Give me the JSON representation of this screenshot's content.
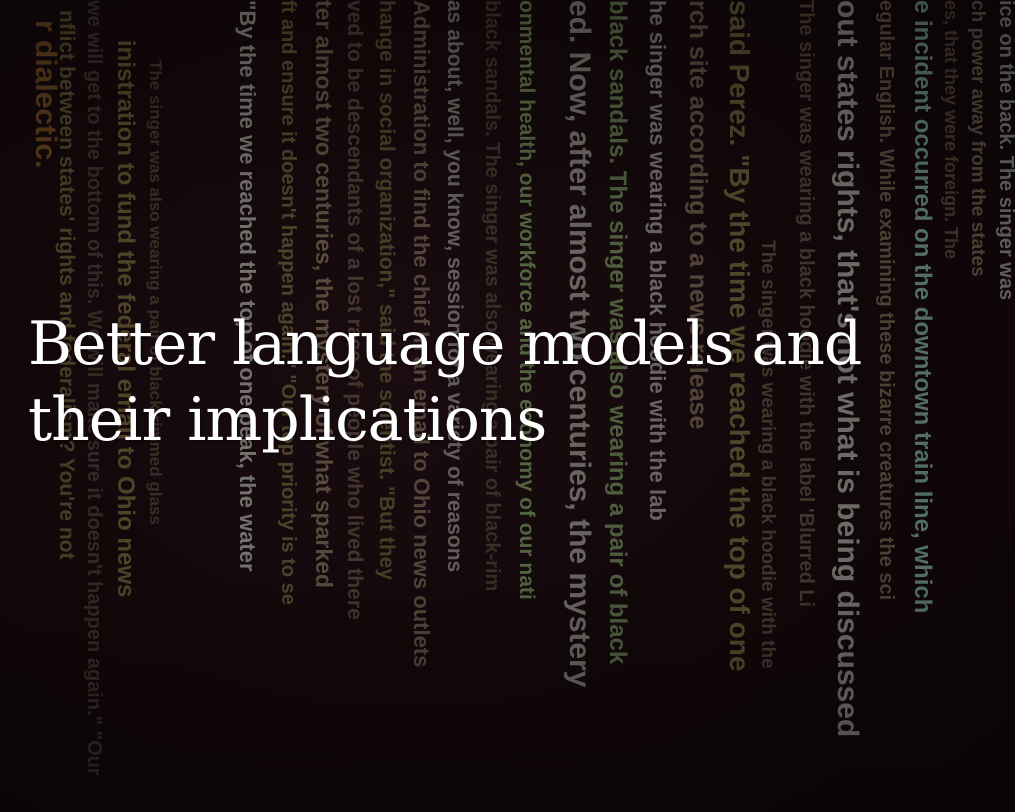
{
  "hero": {
    "title": "Better language models and their implications"
  },
  "background_text_art": {
    "colors": {
      "background": "#0d0608",
      "olive": "#6f6a3c",
      "tan": "#7d6d56",
      "green": "#6d8a57",
      "teal": "#6a8f8a",
      "brown": "#8a5f2a",
      "grey": "#8b8b86"
    },
    "columns": [
      {
        "text": "r dialectic.",
        "color": "#8a5f2a"
      },
      {
        "text": "nflict between states' rights and federalism? You're not",
        "color": "#6f6a3c"
      },
      {
        "text": "we will get to the bottom of this. We will make sure it doesn't happen again.\" \"Our",
        "color": "#5a5440"
      },
      {
        "text": "inistration to fund the federal email to Ohio news",
        "color": "#7a6a3a"
      },
      {
        "text": "The singer was also wearing a pair of black-rimmed glass",
        "color": "#6a5a48"
      },
      {
        "text": "\"By the time we reached the top of one peak, the water",
        "color": "#8b8b86"
      },
      {
        "text": "ft and ensure it doesn't happen again.\" \"Our top priority is to se",
        "color": "#6f6a3c"
      },
      {
        "text": "ter almost two centuries, the mystery of what sparked",
        "color": "#7d6d56"
      },
      {
        "text": "ved to be descendants of a lost race of people who lived there",
        "color": "#6a5a48"
      },
      {
        "text": "hange in social organization,\" said the scientist. \"But they",
        "color": "#6f6a3c"
      },
      {
        "text": "Administration to find the chief In an email to Ohio news outlets",
        "color": "#7d6d56"
      },
      {
        "text": "as about, well, you know, session for a variety of reasons",
        "color": "#8b8b86"
      },
      {
        "text": "black sandals. The singer was also wearing a pair of black-rim",
        "color": "#5a5440"
      },
      {
        "text": "onmental health, our workforce and the economy of our nati",
        "color": "#6d8a57"
      },
      {
        "text": "ed. Now, after almost two centuries, the mystery",
        "color": "#8b8b86"
      },
      {
        "text": "black sandals. The singer was also wearing a pair of black",
        "color": "#6d8a57"
      },
      {
        "text": "he singer was wearing a black hoodie with the lab",
        "color": "#8b8b86"
      },
      {
        "text": "rch site according to a news release",
        "color": "#7d6d56"
      },
      {
        "text": "said Perez. \"By the time we reached the top of one",
        "color": "#6f6a3c"
      },
      {
        "text": "The singer was wearing a black hoodie with the",
        "color": "#6a5a48"
      },
      {
        "text": "The singer was wearing a black hoodie with the label 'Blurred Li",
        "color": "#6a5a48"
      },
      {
        "text": "out states rights, that's not what is being discussed",
        "color": "#8b8b86"
      },
      {
        "text": "egular English. While examining these bizarre creatures the sci",
        "color": "#7d6d56"
      },
      {
        "text": "e incident occurred on the downtown train line, which",
        "color": "#6a8f8a"
      },
      {
        "text": "es, that they were foreign. The",
        "color": "#6a5a48"
      },
      {
        "text": "ch power away from the states",
        "color": "#7d6d56"
      },
      {
        "text": "ice on the back. The singer was",
        "color": "#8b8b86"
      }
    ]
  }
}
